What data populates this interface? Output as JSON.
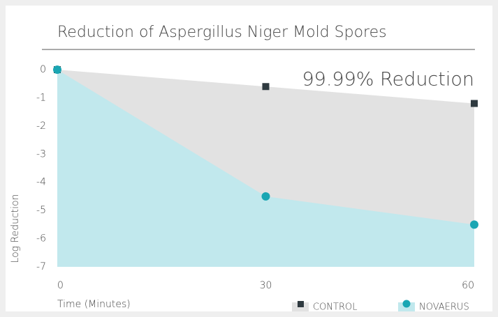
{
  "chart_data": {
    "type": "area",
    "title": "Reduction of Aspergillus Niger Mold Spores",
    "xlabel": "Time (Minutes)",
    "ylabel": "Log Reduction",
    "annotation": "99.99% Reduction",
    "x": [
      0,
      30,
      60
    ],
    "series": [
      {
        "name": "CONTROL",
        "color": "#2f3a40",
        "fill": "#e2e2e2",
        "marker": "square",
        "values": [
          0,
          -0.6,
          -1.2
        ]
      },
      {
        "name": "NOVAERUS",
        "color": "#1aa6b3",
        "fill": "#c1e8ed",
        "marker": "circle",
        "values": [
          0,
          -4.5,
          -5.5
        ]
      }
    ],
    "xlim": [
      0,
      60
    ],
    "xticks": [
      0,
      30,
      60
    ],
    "ylim": [
      -7,
      0
    ],
    "yticks": [
      0,
      -1,
      -2,
      -3,
      -4,
      -5,
      -6,
      -7
    ],
    "grid": false,
    "legend": "lower right"
  }
}
